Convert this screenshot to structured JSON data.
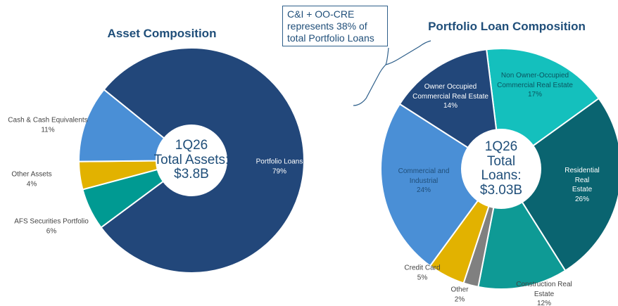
{
  "chart_data": [
    {
      "type": "donut",
      "title": "Asset Composition",
      "center_text": "1Q26\nTotal Assets:\n$3.8B",
      "categories": [
        "Portfolio Loans",
        "AFS Securities Portfolio",
        "Other Assets",
        "Cash & Cash Equivalents"
      ],
      "values": [
        79,
        6,
        4,
        11
      ],
      "value_labels": [
        "79%",
        "6%",
        "4%",
        "11%"
      ],
      "colors": [
        "#22477a",
        "#009a92",
        "#e2b200",
        "#4a8fd6"
      ]
    },
    {
      "type": "donut",
      "title": "Portfolio Loan Composition",
      "center_text": "1Q26\nTotal\nLoans:\n$3.03B",
      "categories": [
        "Non Owner-Occupied\nCommercial Real Estate",
        "Residential Real Estate",
        "Construction Real Estate",
        "Other",
        "Credit Card",
        "Commercial and\nIndustrial",
        "Owner Occupied\nCommercial Real Estate"
      ],
      "values": [
        17,
        26,
        12,
        2,
        5,
        24,
        14
      ],
      "value_labels": [
        "17%",
        "26%",
        "12%",
        "2%",
        "5%",
        "24%",
        "14%"
      ],
      "colors": [
        "#14c0bd",
        "#0a6470",
        "#0e9a95",
        "#808080",
        "#e2b200",
        "#4a8fd6",
        "#22477a"
      ]
    }
  ],
  "annotation": "C&I + OO-CRE\nrepresents 38% of\ntotal Portfolio Loans"
}
